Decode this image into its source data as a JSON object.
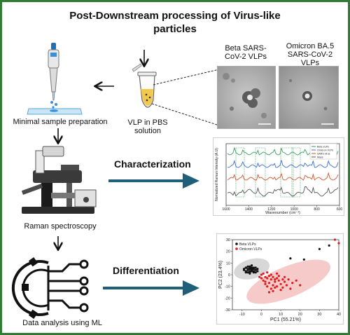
{
  "title": {
    "line1": "Post-Downstream processing of Virus-like",
    "line2": "particles"
  },
  "labels": {
    "minimal_prep": "Minimal sample preparation",
    "vlp_line1": "VLP in PBS",
    "vlp_line2": "solution",
    "beta_line1": "Beta SARS-",
    "beta_line2": "CoV-2 VLPs",
    "omicron_line1": "Omicron BA.5",
    "omicron_line2": "SARS-CoV-2",
    "omicron_line3": "VLPs",
    "characterization": "Characterization",
    "raman": "Raman spectroscopy",
    "differentiation": "Differentiation",
    "data_analysis": "Data analysis using ML"
  },
  "colors": {
    "frame": "#2e7d32",
    "arrow_blue": "#1f5f7a",
    "tube_fill": "#f2c94c",
    "pipette_blue": "#3b8fd6"
  },
  "icons": {
    "pipette": "pipette-icon",
    "tube": "microcentrifuge-tube-icon",
    "microscope": "microscope-icon",
    "ml": "gear-circuit-icon"
  },
  "chart_data": [
    {
      "type": "line",
      "xlabel": "Wavenumber (cm⁻¹)",
      "ylabel": "Normalized Raman Intensity (A.U)",
      "xlim": [
        1600,
        600
      ],
      "x_ticks": [
        "1600",
        "1400",
        "1200",
        "1000",
        "800",
        "600"
      ],
      "legend": [
        "Beta VLPs",
        "Omicron VLPs",
        "SARS virus",
        "Mass"
      ],
      "legend_placement": "top-right",
      "series": [
        {
          "name": "Beta VLPs",
          "color": "#3a9d5d"
        },
        {
          "name": "Omicron VLPs",
          "color": "#3b6fcf"
        },
        {
          "name": "SARS virus",
          "color": "#d9542b"
        },
        {
          "name": "Mass",
          "color": "#555555"
        }
      ]
    },
    {
      "type": "scatter",
      "xlabel": "PC1 (55.21%)",
      "ylabel": "PC2 (23.4%)",
      "xlim": [
        -15,
        40
      ],
      "ylim": [
        -30,
        30
      ],
      "x_ticks": [
        "-10",
        "0",
        "10",
        "20",
        "30",
        "40"
      ],
      "y_ticks": [
        "30",
        "20",
        "10",
        "0",
        "-10",
        "-20",
        "-30"
      ],
      "legend_placement": "top-left",
      "series": [
        {
          "name": "Beta VLPs",
          "color": "#111111",
          "points": [
            [
              -8,
              6
            ],
            [
              -7,
              5
            ],
            [
              -6,
              7
            ],
            [
              -5,
              4
            ],
            [
              -9,
              5
            ],
            [
              -6,
              3
            ],
            [
              -4,
              6
            ],
            [
              -7,
              2
            ],
            [
              -5,
              8
            ],
            [
              -8,
              3
            ],
            [
              -3,
              4
            ],
            [
              -6,
              5
            ],
            [
              -4,
              2
            ],
            [
              -7,
              7
            ],
            [
              -5,
              3
            ],
            [
              -3,
              6
            ],
            [
              -6,
              1
            ],
            [
              -8,
              6
            ],
            [
              -4,
              5
            ],
            [
              -5,
              6
            ],
            [
              -2,
              3
            ],
            [
              -7,
              4
            ],
            [
              -6,
              6
            ],
            [
              -3,
              2
            ],
            [
              -5,
              5
            ],
            [
              -9,
              4
            ],
            [
              -4,
              3
            ],
            [
              -6,
              2
            ],
            [
              -2,
              5
            ],
            [
              -8,
              2
            ],
            [
              15,
              14
            ],
            [
              22,
              13
            ],
            [
              30,
              22
            ],
            [
              35,
              25
            ]
          ]
        },
        {
          "name": "Omicron VLPs",
          "color": "#e0191b",
          "points": [
            [
              0,
              0
            ],
            [
              2,
              -2
            ],
            [
              4,
              -1
            ],
            [
              5,
              -4
            ],
            [
              3,
              -3
            ],
            [
              6,
              -2
            ],
            [
              1,
              -5
            ],
            [
              7,
              -6
            ],
            [
              8,
              -3
            ],
            [
              4,
              -7
            ],
            [
              9,
              -5
            ],
            [
              10,
              -8
            ],
            [
              6,
              -9
            ],
            [
              12,
              -6
            ],
            [
              3,
              -10
            ],
            [
              5,
              -12
            ],
            [
              8,
              -10
            ],
            [
              11,
              -11
            ],
            [
              2,
              -6
            ],
            [
              7,
              -4
            ],
            [
              0,
              -3
            ],
            [
              -1,
              -2
            ],
            [
              9,
              -1
            ],
            [
              13,
              -9
            ],
            [
              14,
              -4
            ],
            [
              6,
              -14
            ],
            [
              4,
              -15
            ],
            [
              10,
              -13
            ],
            [
              16,
              -7
            ],
            [
              12,
              -2
            ],
            [
              1,
              1
            ],
            [
              3,
              2
            ],
            [
              5,
              0
            ],
            [
              8,
              1
            ],
            [
              2,
              -8
            ],
            [
              15,
              -12
            ],
            [
              18,
              -5
            ],
            [
              20,
              -9
            ],
            [
              7,
              -11
            ],
            [
              11,
              -4
            ],
            [
              38,
              30
            ],
            [
              40,
              27
            ]
          ]
        }
      ]
    }
  ]
}
